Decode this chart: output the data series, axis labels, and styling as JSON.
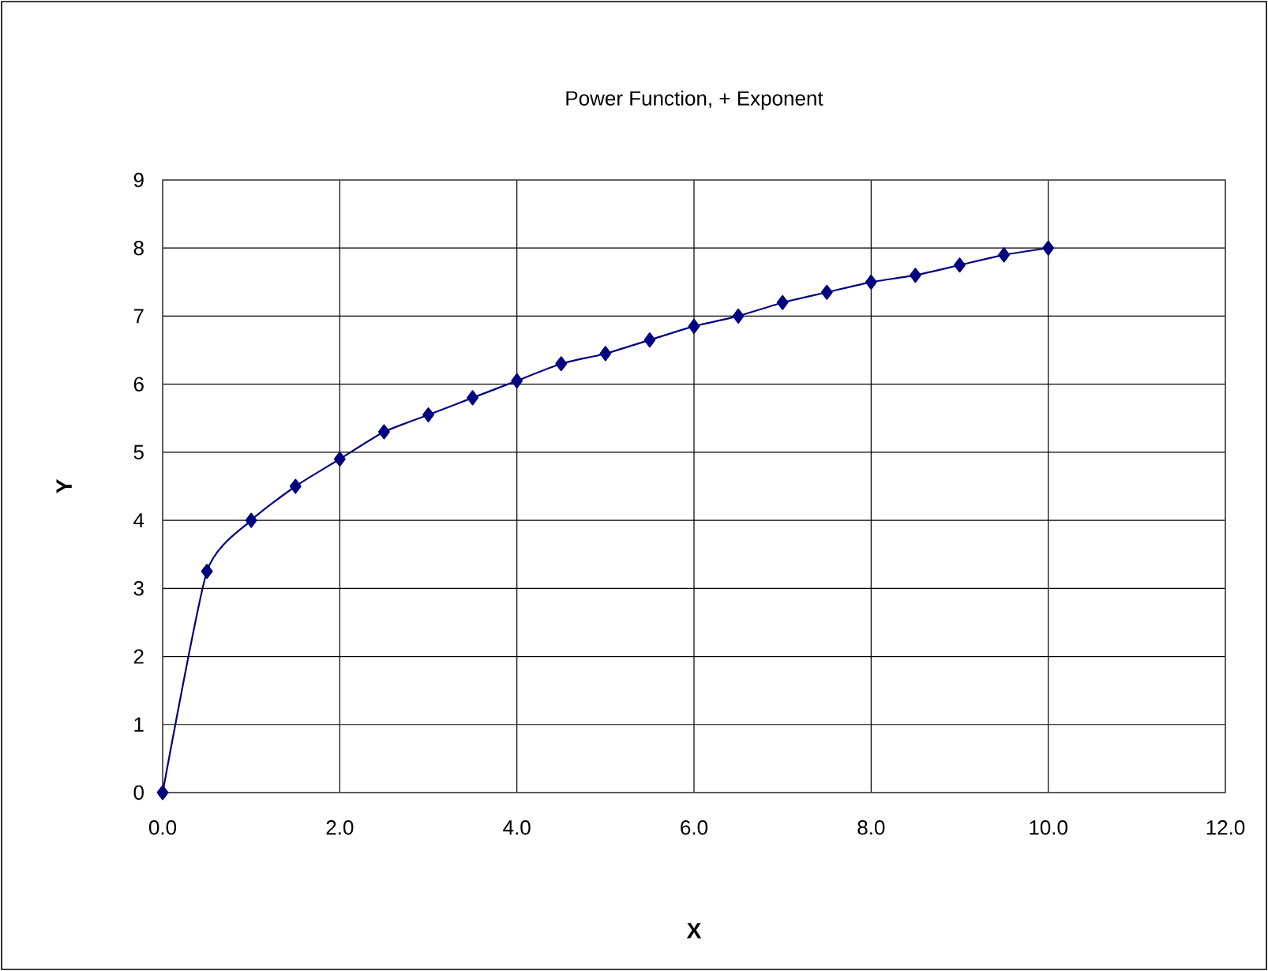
{
  "chart_data": {
    "type": "line",
    "title": "Power Function, + Exponent",
    "xlabel": "X",
    "ylabel": "Y",
    "x": [
      0,
      0.5,
      1,
      1.5,
      2,
      2.5,
      3,
      3.5,
      4,
      4.5,
      5,
      5.5,
      6,
      6.5,
      7,
      7.5,
      8,
      8.5,
      9,
      9.5,
      10
    ],
    "series": [
      {
        "color": "#000080",
        "values": [
          0,
          3.25,
          4,
          4.5,
          4.9,
          5.3,
          5.55,
          5.8,
          6.05,
          6.3,
          6.45,
          6.65,
          6.85,
          7.0,
          7.2,
          7.35,
          7.5,
          7.6,
          7.75,
          7.9,
          8.0
        ]
      }
    ],
    "xlim": [
      0,
      12
    ],
    "ylim": [
      0,
      9
    ],
    "xticks": [
      {
        "value": 0,
        "label": "0.0"
      },
      {
        "value": 2,
        "label": "2.0"
      },
      {
        "value": 4,
        "label": "4.0"
      },
      {
        "value": 6,
        "label": "6.0"
      },
      {
        "value": 8,
        "label": "8.0"
      },
      {
        "value": 10,
        "label": "10.0"
      },
      {
        "value": 12,
        "label": "12.0"
      }
    ],
    "yticks": [
      0,
      1,
      2,
      3,
      4,
      5,
      6,
      7,
      8,
      9
    ],
    "grid": true,
    "marker": "diamond",
    "line_style": "solid"
  }
}
